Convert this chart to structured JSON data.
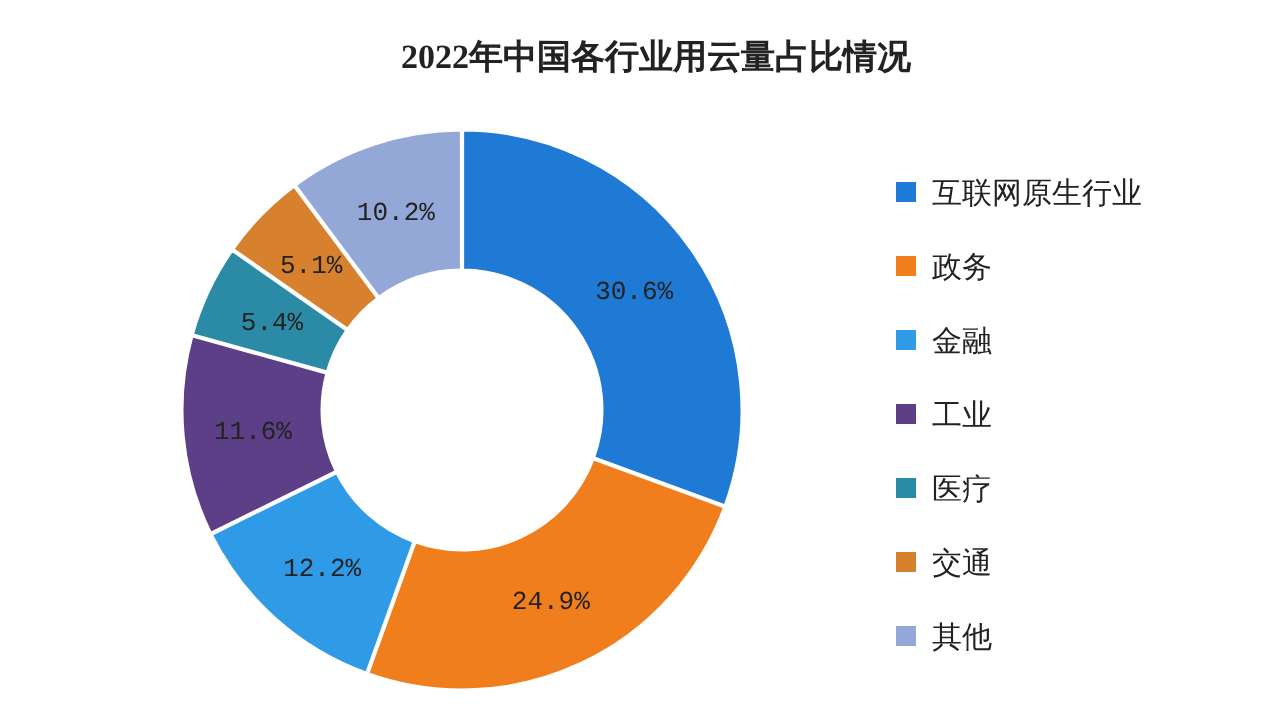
{
  "chart_data": {
    "type": "donut",
    "title": "2022年中国各行业用云量占比情况",
    "categories": [
      "互联网原生行业",
      "政务",
      "金融",
      "工业",
      "医疗",
      "交通",
      "其他"
    ],
    "values": [
      30.6,
      24.9,
      12.2,
      11.6,
      5.4,
      5.1,
      10.2
    ],
    "value_labels": [
      "30.6%",
      "24.9%",
      "12.2%",
      "11.6%",
      "5.4%",
      "5.1%",
      "10.2%"
    ],
    "colors": [
      "#1f7ad6",
      "#f07e1c",
      "#2f9ae6",
      "#5c3f87",
      "#2b8aa6",
      "#d7802d",
      "#94a8d8"
    ],
    "legend": "right"
  }
}
